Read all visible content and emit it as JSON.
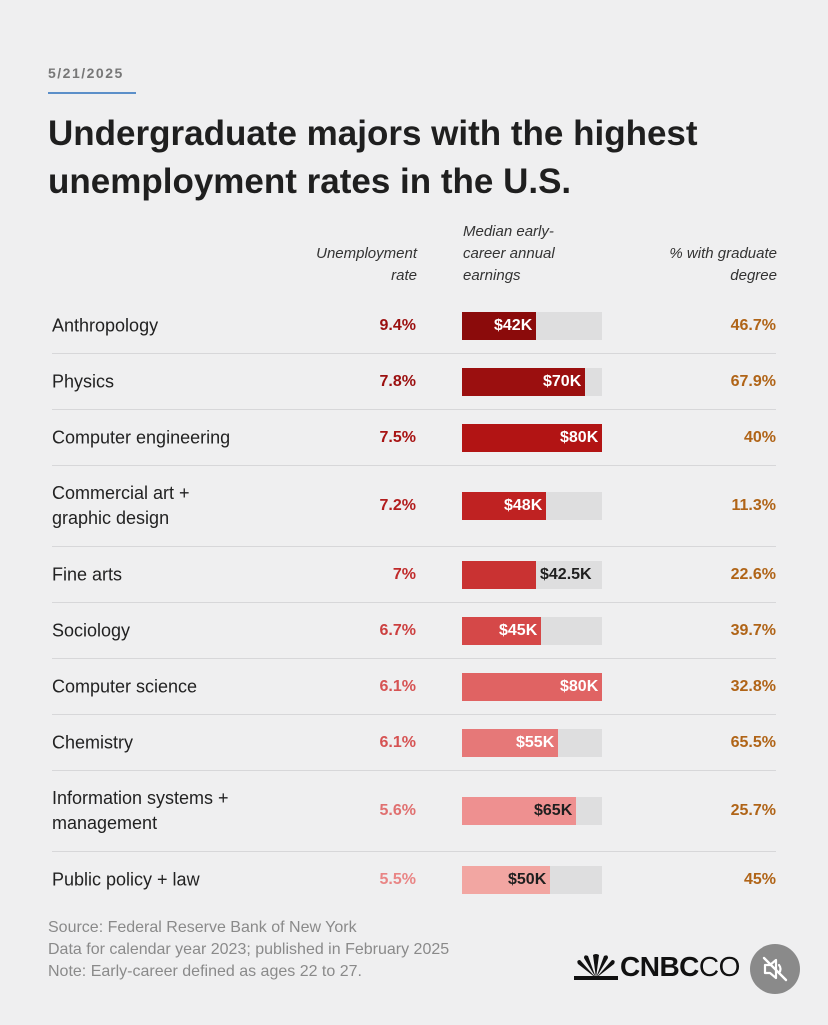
{
  "date": "5/21/2025",
  "title": "Undergraduate majors with the highest unemployment rates in the U.S.",
  "columns": {
    "rate": "Unemployment\nrate",
    "earnings": "Median early-\ncareer annual\nearnings",
    "grad": "% with graduate\ndegree"
  },
  "source_lines": [
    "Source: Federal Reserve Bank of New York",
    "Data for calendar year 2023; published in February 2025",
    "Note: Early-career defined as ages 22 to 27."
  ],
  "logo_text": "CNBC",
  "logo_text_clipped": "CO",
  "icons": {
    "logo": "nbc-peacock-icon",
    "mute": "speaker-muted-icon"
  },
  "chart_data": {
    "type": "table",
    "earnings_max": 80,
    "rows": [
      {
        "major": "Anthropology",
        "rate": "9.4%",
        "earnings": 42,
        "earnings_label": "$42K",
        "grad": "46.7%",
        "color": "#8b0b0b",
        "label_color": "#ffffff",
        "label_inside": true
      },
      {
        "major": "Physics",
        "rate": "7.8%",
        "earnings": 70,
        "earnings_label": "$70K",
        "grad": "67.9%",
        "color": "#9b0f0f",
        "label_color": "#ffffff",
        "label_inside": true
      },
      {
        "major": "Computer engineering",
        "rate": "7.5%",
        "earnings": 80,
        "earnings_label": "$80K",
        "grad": "40%",
        "color": "#b21414",
        "label_color": "#ffffff",
        "label_inside": true
      },
      {
        "major": "Commercial art +\ngraphic design",
        "rate": "7.2%",
        "earnings": 48,
        "earnings_label": "$48K",
        "grad": "11.3%",
        "color": "#bf2222",
        "label_color": "#ffffff",
        "label_inside": true
      },
      {
        "major": "Fine arts",
        "rate": "7%",
        "earnings": 42.5,
        "earnings_label": "$42.5K",
        "grad": "22.6%",
        "color": "#c93232",
        "label_color": "#1f1f1f",
        "label_inside": false
      },
      {
        "major": "Sociology",
        "rate": "6.7%",
        "earnings": 45,
        "earnings_label": "$45K",
        "grad": "39.7%",
        "color": "#d54848",
        "label_color": "#ffffff",
        "label_inside": true
      },
      {
        "major": "Computer science",
        "rate": "6.1%",
        "earnings": 80,
        "earnings_label": "$80K",
        "grad": "32.8%",
        "color": "#e06363",
        "label_color": "#ffffff",
        "label_inside": true
      },
      {
        "major": "Chemistry",
        "rate": "6.1%",
        "earnings": 55,
        "earnings_label": "$55K",
        "grad": "65.5%",
        "color": "#e67878",
        "label_color": "#ffffff",
        "label_inside": true
      },
      {
        "major": "Information systems +\nmanagement",
        "rate": "5.6%",
        "earnings": 65,
        "earnings_label": "$65K",
        "grad": "25.7%",
        "color": "#ee9090",
        "label_color": "#1f1f1f",
        "label_inside": true
      },
      {
        "major": "Public policy + law",
        "rate": "5.5%",
        "earnings": 50,
        "earnings_label": "$50K",
        "grad": "45%",
        "color": "#f2a6a2",
        "label_color": "#1f1f1f",
        "label_inside": true
      }
    ],
    "rate_colors": [
      "#9b0f0f",
      "#9b0f0f",
      "#a81313",
      "#b21d1d",
      "#c02a2a",
      "#cc3f3f",
      "#d65353",
      "#d65353",
      "#e07070",
      "#e98585"
    ]
  }
}
